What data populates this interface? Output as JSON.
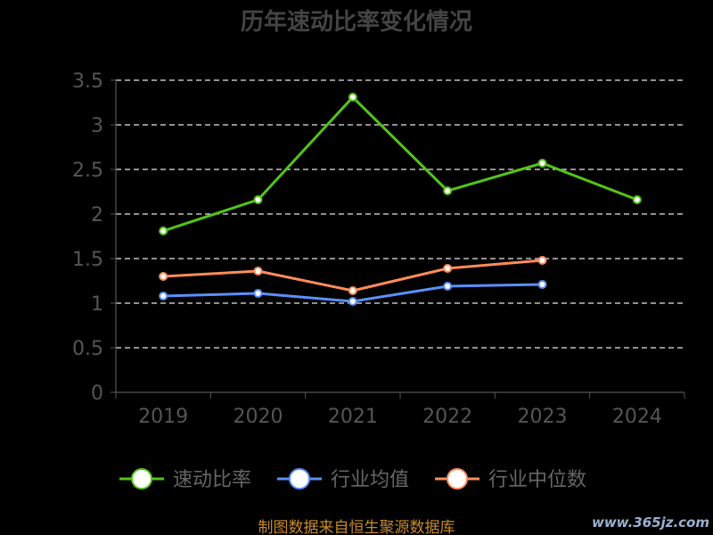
{
  "chart_data": {
    "type": "line",
    "title": "历年速动比率变化情况",
    "categories": [
      "2019",
      "2020",
      "2021",
      "2022",
      "2023",
      "2024"
    ],
    "y_ticks": [
      "0",
      "0.5",
      "1",
      "1.5",
      "2",
      "2.5",
      "3",
      "3.5"
    ],
    "ylim": [
      0,
      3.5
    ],
    "grid": true,
    "legend_position": "bottom",
    "series": [
      {
        "name": "速动比率",
        "color": "#52c41a",
        "values": [
          1.81,
          2.16,
          3.31,
          2.26,
          2.57,
          2.16
        ]
      },
      {
        "name": "行业均值",
        "color": "#5b8ff9",
        "values": [
          1.08,
          1.11,
          1.02,
          1.19,
          1.21,
          null
        ]
      },
      {
        "name": "行业中位数",
        "color": "#ff8c5a",
        "values": [
          1.3,
          1.36,
          1.14,
          1.39,
          1.48,
          null
        ]
      }
    ]
  },
  "footer": {
    "source": "制图数据来自恒生聚源数据库",
    "watermark": "www.365jz.com"
  }
}
